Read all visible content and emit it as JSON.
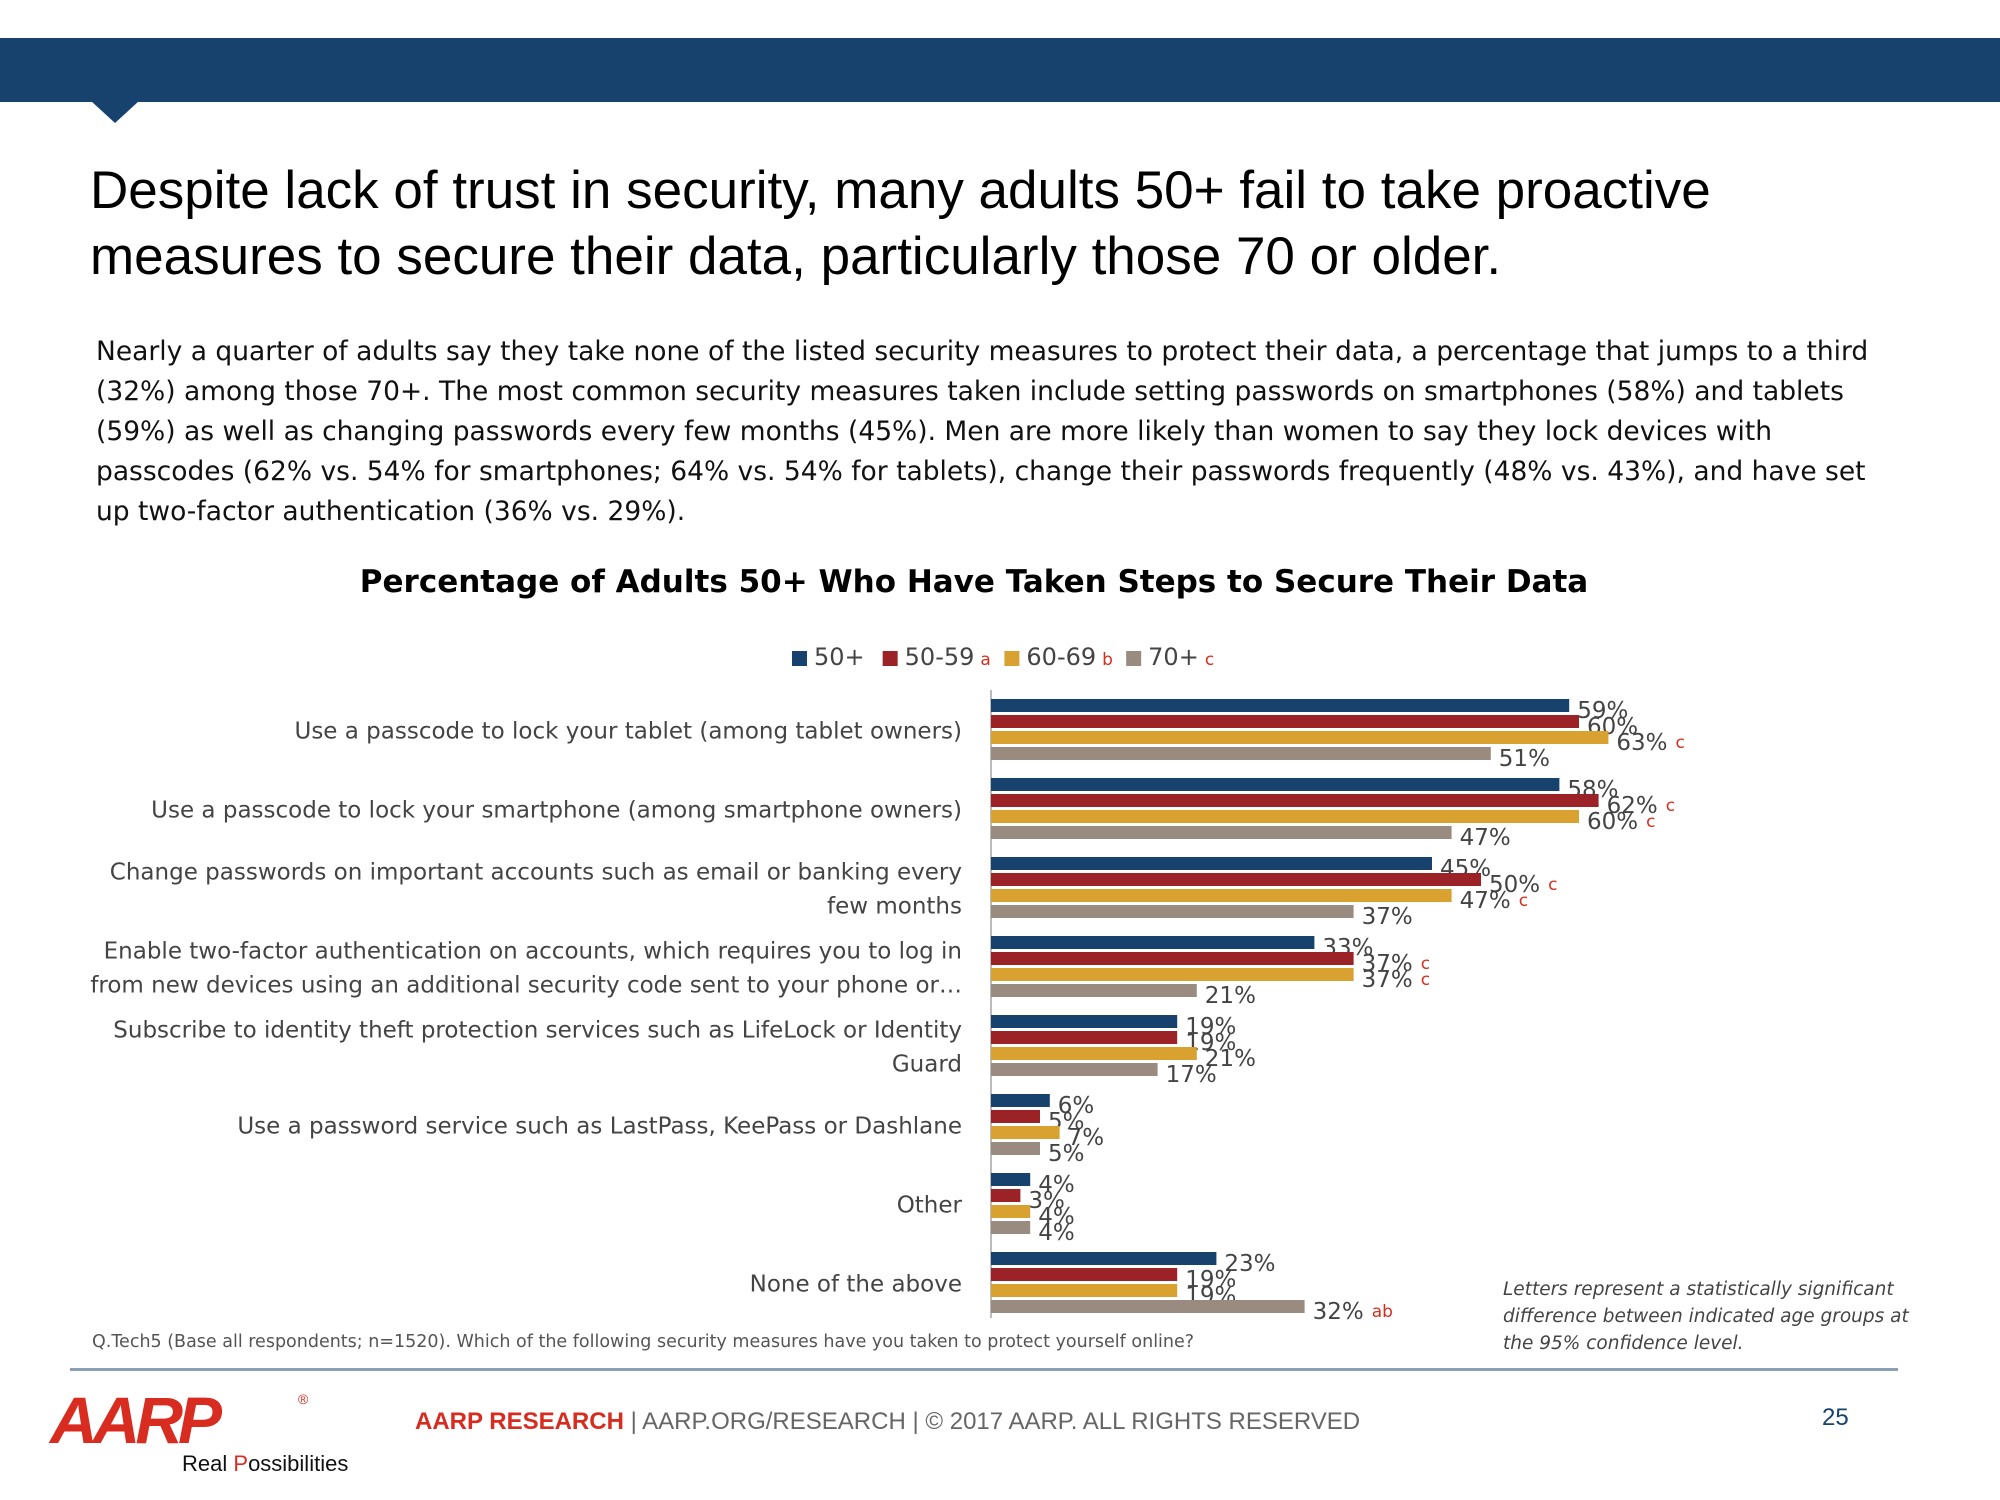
{
  "slide": {
    "headline_line1": "Despite lack of trust in security, many adults 50+ fail to take proactive",
    "headline_line2": "measures to secure their data, particularly those 70 or older.",
    "summary_lines": [
      "Nearly a quarter of adults say they take none of the listed security measures to protect their data, a percentage that jumps to a third",
      "(32%) among those 70+. The most common security measures taken include setting passwords on smartphones (58%) and tablets",
      "(59%) as well as changing passwords every few months (45%). Men are more likely than women to say they lock devices with",
      "passcodes (62% vs. 54% for smartphones; 64% vs. 54% for tablets), change their passwords frequently (48% vs. 43%), and have set",
      "up two-factor authentication (36% vs. 29%)."
    ],
    "footnote": "Q.Tech5 (Base all respondents; n=1520). Which of the following security measures have you taken to protect yourself online?",
    "significance_note": "Letters represent a statistically significant difference between indicated age groups at the 95% confidence level."
  },
  "footer": {
    "logo_word": "AARP",
    "logo_tagline_real": "Real",
    "logo_tagline_rest": "Possibilities",
    "brand": "AARP RESEARCH",
    "rest": " | AARP.ORG/RESEARCH | © 2017 AARP. ALL RIGHTS RESERVED",
    "page_number": "25"
  },
  "colors": {
    "band": "#17426e",
    "accent_red": "#d72c1f",
    "series": [
      "#17426e",
      "#9b2226",
      "#d8a130",
      "#9a8b81"
    ]
  },
  "chart_data": {
    "type": "bar",
    "orientation": "horizontal",
    "title": "Percentage of Adults 50+ Who Have Taken Steps to Secure Their Data",
    "xlim": [
      0,
      100
    ],
    "legend_position": "top-center",
    "gridlines": false,
    "categories": [
      [
        "Use a passcode to lock your tablet (among tablet owners)"
      ],
      [
        "Use a passcode to lock your smartphone (among smartphone owners)"
      ],
      [
        "Change passwords on important accounts such as email or banking every",
        "few months"
      ],
      [
        "Enable two-factor authentication on accounts, which requires you to log in",
        "from new devices using an additional security code sent to your phone or…"
      ],
      [
        "Subscribe to identity theft protection services such as LifeLock or Identity",
        "Guard"
      ],
      [
        "Use a password service such as LastPass, KeePass or Dashlane"
      ],
      [
        "Other"
      ],
      [
        "None of the above"
      ]
    ],
    "series": [
      {
        "name": "50+",
        "tag": "",
        "color": "#17426e",
        "values": [
          59,
          58,
          45,
          33,
          19,
          6,
          4,
          23
        ],
        "sig": [
          "",
          "",
          "",
          "",
          "",
          "",
          "",
          ""
        ]
      },
      {
        "name": "50-59",
        "tag": "a",
        "color": "#9b2226",
        "values": [
          60,
          62,
          50,
          37,
          19,
          5,
          3,
          19
        ],
        "sig": [
          "",
          "c",
          "c",
          "c",
          "",
          "",
          "",
          ""
        ]
      },
      {
        "name": "60-69",
        "tag": "b",
        "color": "#d8a130",
        "values": [
          63,
          60,
          47,
          37,
          21,
          7,
          4,
          19
        ],
        "sig": [
          "c",
          "c",
          "c",
          "c",
          "",
          "",
          "",
          ""
        ]
      },
      {
        "name": "70+",
        "tag": "c",
        "color": "#9a8b81",
        "values": [
          51,
          47,
          37,
          21,
          17,
          5,
          4,
          32
        ],
        "sig": [
          "",
          "",
          "",
          "",
          "",
          "",
          "",
          "ab"
        ]
      }
    ]
  }
}
